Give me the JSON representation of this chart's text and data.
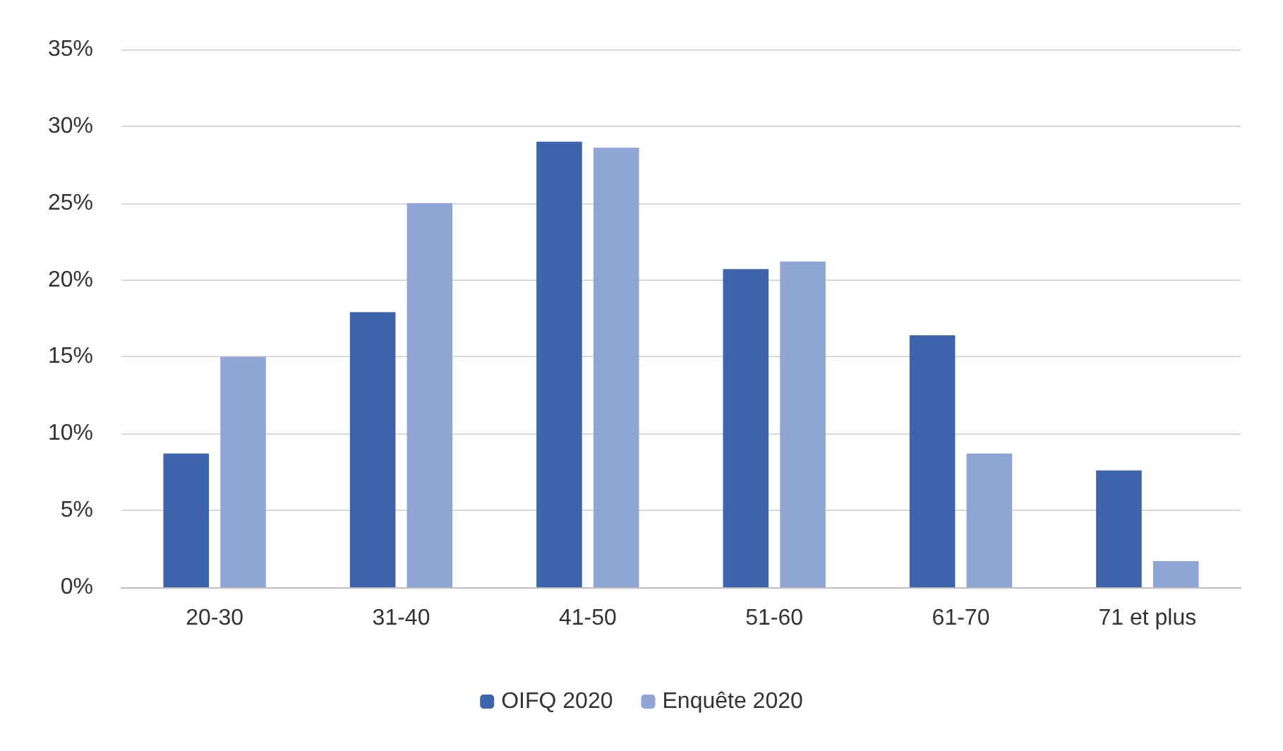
{
  "chart_data": {
    "type": "bar",
    "categories": [
      "20-30",
      "31-40",
      "41-50",
      "51-60",
      "61-70",
      "71 et plus"
    ],
    "series": [
      {
        "name": "OIFQ 2020",
        "color": "#3d64ad",
        "values": [
          8.7,
          17.9,
          29,
          20.7,
          16.4,
          7.6
        ]
      },
      {
        "name": "Enquête 2020",
        "color": "#8fa5d6",
        "values": [
          15,
          25,
          28.6,
          21.2,
          8.7,
          1.7
        ]
      }
    ],
    "ylim": [
      0,
      35
    ],
    "yticks": [
      {
        "value": 0,
        "label": "0%"
      },
      {
        "value": 5,
        "label": "5%"
      },
      {
        "value": 10,
        "label": "10%"
      },
      {
        "value": 15,
        "label": "15%"
      },
      {
        "value": 20,
        "label": "20%"
      },
      {
        "value": 25,
        "label": "25%"
      },
      {
        "value": 30,
        "label": "30%"
      },
      {
        "value": 35,
        "label": "35%"
      }
    ],
    "grid": "y",
    "legend": "bottom"
  }
}
